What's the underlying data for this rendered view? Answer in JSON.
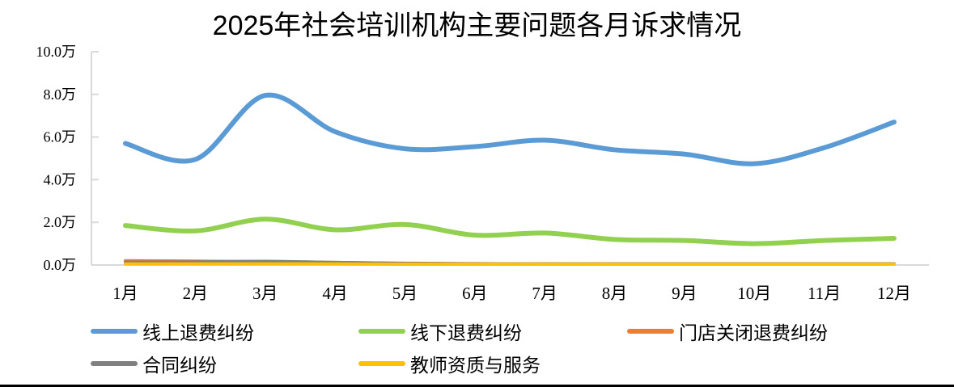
{
  "title": "2025年社会培训机构主要问题各月诉求情况",
  "chart_data": {
    "type": "line",
    "title": "2025年社会培训机构主要问题各月诉求情况",
    "xlabel": "",
    "ylabel": "",
    "categories": [
      "1月",
      "2月",
      "3月",
      "4月",
      "5月",
      "6月",
      "7月",
      "8月",
      "9月",
      "10月",
      "11月",
      "12月"
    ],
    "y_ticks": [
      "0.0万",
      "2.0万",
      "4.0万",
      "6.0万",
      "8.0万",
      "10.0万"
    ],
    "ylim": [
      0,
      10
    ],
    "y_unit": "万",
    "grid": false,
    "smooth": true,
    "legend_position": "bottom",
    "series": [
      {
        "name": "线上退费纠纷",
        "color": "#5B9BD5",
        "values": [
          5.7,
          4.95,
          7.95,
          6.25,
          5.45,
          5.55,
          5.85,
          5.4,
          5.2,
          4.75,
          5.5,
          6.7
        ]
      },
      {
        "name": "线下退费纠纷",
        "color": "#92D050",
        "values": [
          1.85,
          1.6,
          2.15,
          1.65,
          1.9,
          1.4,
          1.5,
          1.2,
          1.15,
          1.0,
          1.15,
          1.25
        ]
      },
      {
        "name": "门店关闭退费纠纷",
        "color": "#ED7D31",
        "values": [
          0.2,
          0.18,
          0.15,
          0.12,
          0.08,
          0.06,
          0.05,
          0.05,
          0.05,
          0.05,
          0.05,
          0.05
        ]
      },
      {
        "name": "合同纠纷",
        "color": "#808080",
        "values": [
          0.13,
          0.14,
          0.17,
          0.12,
          0.07,
          0.05,
          0.05,
          0.05,
          0.05,
          0.05,
          0.05,
          0.05
        ]
      },
      {
        "name": "教师资质与服务",
        "color": "#FFC000",
        "values": [
          0.05,
          0.05,
          0.05,
          0.05,
          0.04,
          0.04,
          0.04,
          0.04,
          0.04,
          0.04,
          0.04,
          0.04
        ]
      }
    ]
  },
  "legend": [
    {
      "label": "线上退费纠纷",
      "color": "#5B9BD5"
    },
    {
      "label": "线下退费纠纷",
      "color": "#92D050"
    },
    {
      "label": "门店关闭退费纠纷",
      "color": "#ED7D31"
    },
    {
      "label": "合同纠纷",
      "color": "#808080"
    },
    {
      "label": "教师资质与服务",
      "color": "#FFC000"
    }
  ]
}
